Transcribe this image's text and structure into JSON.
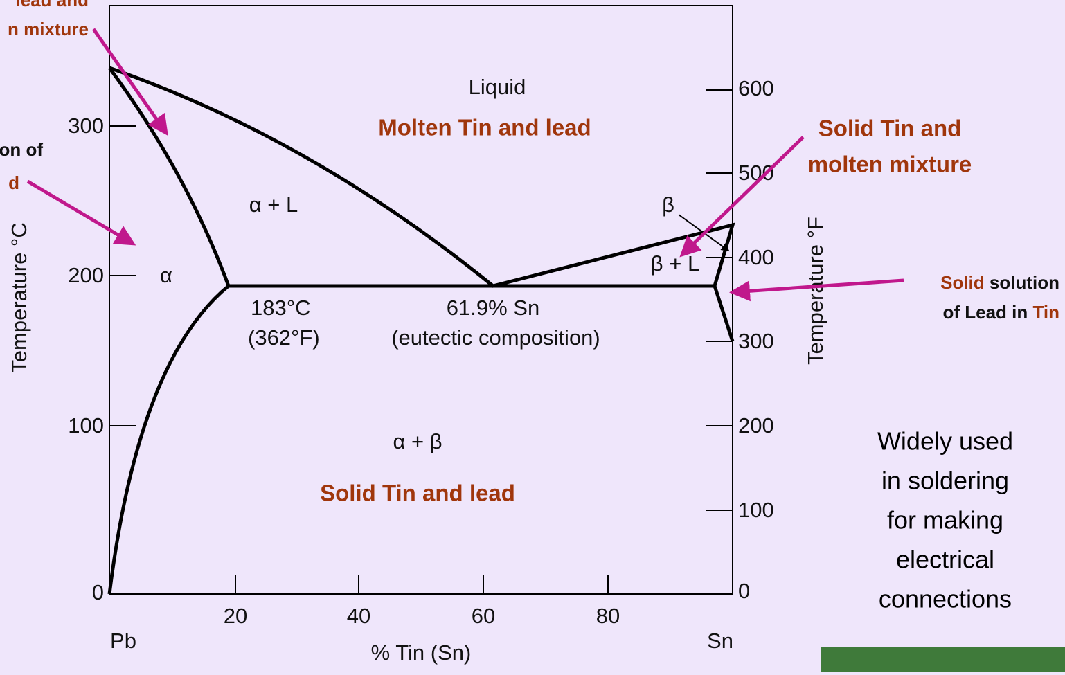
{
  "diagram": {
    "cut_labels": [
      "lead and",
      "n mixture",
      "on of",
      "d"
    ],
    "regions": {
      "liquid": "Liquid",
      "liquid_note": "Molten Tin and lead",
      "alpha_l": "α + L",
      "alpha": "α",
      "beta": "β",
      "beta_l": "β + L",
      "alpha_beta": "α + β",
      "solid_note": "Solid Tin and lead"
    },
    "eutectic": {
      "temp_c": "183°C",
      "temp_f": "(362°F)",
      "comp": "61.9% Sn",
      "comp_note": "(eutectic composition)"
    },
    "left_axis": {
      "label": "Temperature °C",
      "ticks": [
        "300",
        "200",
        "100",
        "0"
      ]
    },
    "right_axis": {
      "label": "Temperature °F",
      "ticks": [
        "600",
        "500",
        "400",
        "300",
        "200",
        "100",
        "0"
      ]
    },
    "bottom_axis": {
      "label": "% Tin (Sn)",
      "ticks": [
        "20",
        "40",
        "60",
        "80"
      ],
      "left_end": "Pb",
      "right_end": "Sn"
    },
    "annotations": {
      "solid_tin_molten": [
        "Solid Tin and",
        "molten mixture"
      ],
      "solid_solution": {
        "w1": "Solid",
        "w2": " solution",
        "w3": "of Lead in ",
        "w4": "Tin"
      },
      "note": [
        "Widely used",
        "in soldering",
        "for making",
        "electrical",
        "connections"
      ]
    }
  }
}
